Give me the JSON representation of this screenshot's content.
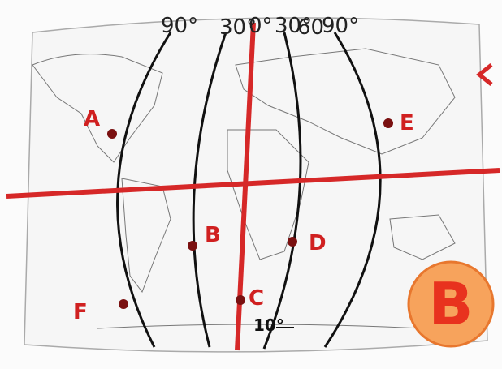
{
  "meridian_labels": [
    "90°",
    "30°",
    "0°",
    "30°",
    "60",
    "90°"
  ],
  "points": [
    {
      "label": "A"
    },
    {
      "label": "B"
    },
    {
      "label": "C"
    },
    {
      "label": "D"
    },
    {
      "label": "E"
    },
    {
      "label": "F"
    }
  ],
  "annotation": "10°",
  "badge": "B"
}
